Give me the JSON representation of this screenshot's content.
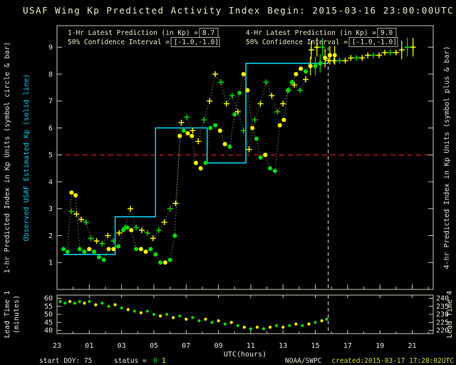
{
  "header": {
    "title": "USAF Wing Kp Predicted Activity Index",
    "begin": "Begin: 2015-03-16 23:00:00UTC"
  },
  "legend": {
    "p1_label": "1-Hr Latest Prediction (in Kp) =",
    "p1_value": "8.7",
    "ci1_label": "50% Confidence Interval =",
    "ci1_value": "[-1.0,-1.0]",
    "p4_label": "4-Hr Latest Prediction (in Kp) =",
    "p4_value": "9.0",
    "ci4_label": "50% Confidence Interval =",
    "ci4_value": "[-1.0,-1.0]"
  },
  "axes": {
    "left_1hr": "1-hr Predicted Index in Kp Units (symbol circle & bar)",
    "left_obs": "Observed USAF Estimated Kp (solid line)",
    "right_4hr": "4-hr Predicted Index in Kp Units (symbol plus & bar)",
    "lead_left": "Lead Time 1",
    "lead_units": "(minutes)",
    "lead_right": "Lead Time 4",
    "x_label": "UTC(hours)"
  },
  "footer": {
    "start_doy": "start DOY: 75",
    "status_label": "status =",
    "status_0": "0",
    "status_1": "1",
    "agency": "NOAA/SWPC",
    "created": "created:2015-03-17 17:28:02UTC"
  },
  "chart_data": {
    "type": "scatter",
    "title": "USAF Wing Kp Predicted Activity Index",
    "begin_utc": "2015-03-16 23:00:00UTC",
    "x_axis": {
      "label": "UTC(hours)",
      "ticks": [
        "23",
        "01",
        "03",
        "05",
        "07",
        "09",
        "11",
        "13",
        "15",
        "17",
        "19",
        "21"
      ],
      "tick_interval_hours": 2,
      "hours_from_begin_range": [
        0,
        23.3
      ]
    },
    "main_panel": {
      "ylim": [
        0,
        9.8
      ],
      "yticks": [
        1,
        2,
        3,
        4,
        5,
        6,
        7,
        8,
        9
      ],
      "threshold_kp": 5,
      "now_hour": 16.8,
      "point_format": "[hours_from_begin, kp, color g=green y=yellow, has_error_bar]",
      "observed_kp_steps": [
        {
          "t0": 0.4,
          "t1": 3.6,
          "kp": 1.3
        },
        {
          "t0": 3.6,
          "t1": 6.1,
          "kp": 2.7
        },
        {
          "t0": 6.1,
          "t1": 9.3,
          "kp": 6.0
        },
        {
          "t0": 9.3,
          "t1": 11.7,
          "kp": 4.7
        },
        {
          "t0": 11.7,
          "t1": 16.8,
          "kp": 8.4
        }
      ],
      "series": [
        {
          "name": "1-hr Predicted Kp",
          "symbol": "circle",
          "latest": 8.7,
          "confidence_interval": "[-1.0,-1.0]",
          "points": [
            [
              0.4,
              1.5,
              "g"
            ],
            [
              0.65,
              1.4,
              "g"
            ],
            [
              0.9,
              3.6,
              "y"
            ],
            [
              1.15,
              3.5,
              "y"
            ],
            [
              1.4,
              1.5,
              "g"
            ],
            [
              1.7,
              1.4,
              "g"
            ],
            [
              2.0,
              1.5,
              "y"
            ],
            [
              2.3,
              1.4,
              "g"
            ],
            [
              2.6,
              1.2,
              "g"
            ],
            [
              2.9,
              1.1,
              "g"
            ],
            [
              3.2,
              1.5,
              "y"
            ],
            [
              3.5,
              1.5,
              "y"
            ],
            [
              3.8,
              1.6,
              "g"
            ],
            [
              4.1,
              2.2,
              "g"
            ],
            [
              4.35,
              2.3,
              "g"
            ],
            [
              4.6,
              2.2,
              "y"
            ],
            [
              4.9,
              1.5,
              "g"
            ],
            [
              5.2,
              1.5,
              "y"
            ],
            [
              5.5,
              1.4,
              "y"
            ],
            [
              5.8,
              1.5,
              "g"
            ],
            [
              6.1,
              1.3,
              "g"
            ],
            [
              6.4,
              1.0,
              "g"
            ],
            [
              6.7,
              1.0,
              "y"
            ],
            [
              7.0,
              1.1,
              "g"
            ],
            [
              7.3,
              2.0,
              "g"
            ],
            [
              7.6,
              5.7,
              "y"
            ],
            [
              7.85,
              5.9,
              "g"
            ],
            [
              8.1,
              5.8,
              "y"
            ],
            [
              8.35,
              5.7,
              "y"
            ],
            [
              8.6,
              4.7,
              "y"
            ],
            [
              8.9,
              4.5,
              "y"
            ],
            [
              9.2,
              4.7,
              "g"
            ],
            [
              9.5,
              6.0,
              "g"
            ],
            [
              9.8,
              6.1,
              "g"
            ],
            [
              10.1,
              5.9,
              "y"
            ],
            [
              10.4,
              5.4,
              "y"
            ],
            [
              10.7,
              5.3,
              "g"
            ],
            [
              11.0,
              6.5,
              "g"
            ],
            [
              11.3,
              7.3,
              "g"
            ],
            [
              11.55,
              8.0,
              "y"
            ],
            [
              11.8,
              7.4,
              "y"
            ],
            [
              12.1,
              6.0,
              "y"
            ],
            [
              12.35,
              5.6,
              "g"
            ],
            [
              12.6,
              4.9,
              "g"
            ],
            [
              12.9,
              5.0,
              "y"
            ],
            [
              13.2,
              4.5,
              "g"
            ],
            [
              13.5,
              4.4,
              "g"
            ],
            [
              13.8,
              6.1,
              "y"
            ],
            [
              14.05,
              6.3,
              "y"
            ],
            [
              14.3,
              7.4,
              "g"
            ],
            [
              14.55,
              7.7,
              "g"
            ],
            [
              14.8,
              8.0,
              "y"
            ],
            [
              15.1,
              8.2,
              "y"
            ],
            [
              15.4,
              8.1,
              "g"
            ],
            [
              15.7,
              8.3,
              "y",
              1
            ],
            [
              16.0,
              8.3,
              "g",
              1
            ],
            [
              16.3,
              8.4,
              "g",
              1
            ],
            [
              16.6,
              8.6,
              "y",
              1
            ],
            [
              16.9,
              8.7,
              "y",
              1
            ],
            [
              17.2,
              8.7,
              "y",
              1
            ]
          ]
        },
        {
          "name": "4-hr Predicted Kp",
          "symbol": "plus",
          "latest": 9.0,
          "confidence_interval": "[-1.0,-1.0]",
          "points": [
            [
              0.9,
              2.9,
              "g"
            ],
            [
              1.2,
              2.8,
              "y"
            ],
            [
              1.5,
              2.6,
              "y"
            ],
            [
              1.8,
              2.5,
              "g"
            ],
            [
              2.1,
              1.9,
              "g"
            ],
            [
              2.45,
              1.8,
              "y"
            ],
            [
              2.8,
              1.7,
              "g"
            ],
            [
              3.15,
              2.0,
              "y"
            ],
            [
              3.5,
              1.8,
              "g"
            ],
            [
              3.85,
              2.1,
              "y"
            ],
            [
              4.2,
              2.3,
              "g"
            ],
            [
              4.55,
              3.0,
              "y"
            ],
            [
              4.9,
              2.3,
              "g"
            ],
            [
              5.25,
              2.2,
              "y"
            ],
            [
              5.6,
              2.1,
              "g"
            ],
            [
              5.95,
              1.9,
              "y"
            ],
            [
              6.3,
              2.2,
              "g"
            ],
            [
              6.65,
              2.5,
              "y"
            ],
            [
              7.0,
              3.0,
              "g"
            ],
            [
              7.35,
              3.2,
              "y"
            ],
            [
              7.7,
              6.2,
              "y"
            ],
            [
              8.05,
              6.4,
              "g"
            ],
            [
              8.4,
              5.9,
              "y"
            ],
            [
              8.75,
              5.5,
              "y"
            ],
            [
              9.1,
              6.3,
              "g"
            ],
            [
              9.45,
              7.0,
              "y"
            ],
            [
              9.8,
              8.0,
              "y"
            ],
            [
              10.15,
              7.7,
              "g"
            ],
            [
              10.5,
              6.9,
              "y"
            ],
            [
              10.85,
              7.2,
              "g"
            ],
            [
              11.2,
              6.6,
              "y"
            ],
            [
              11.55,
              5.9,
              "g"
            ],
            [
              11.9,
              5.2,
              "y"
            ],
            [
              12.25,
              6.3,
              "g"
            ],
            [
              12.6,
              6.9,
              "y"
            ],
            [
              12.95,
              7.7,
              "g"
            ],
            [
              13.3,
              7.2,
              "y"
            ],
            [
              13.65,
              6.6,
              "g"
            ],
            [
              14.0,
              6.9,
              "y"
            ],
            [
              14.35,
              7.4,
              "g"
            ],
            [
              14.7,
              7.6,
              "y"
            ],
            [
              15.05,
              7.4,
              "g"
            ],
            [
              15.4,
              7.8,
              "y"
            ],
            [
              15.75,
              8.9,
              "y",
              1
            ],
            [
              16.1,
              9.0,
              "y",
              1
            ],
            [
              16.45,
              9.0,
              "g",
              1
            ],
            [
              16.8,
              8.5,
              "y"
            ],
            [
              17.15,
              8.5,
              "y"
            ],
            [
              17.5,
              8.5,
              "g"
            ],
            [
              17.85,
              8.5,
              "y"
            ],
            [
              18.2,
              8.6,
              "y"
            ],
            [
              18.55,
              8.6,
              "g"
            ],
            [
              18.9,
              8.6,
              "y"
            ],
            [
              19.25,
              8.7,
              "y"
            ],
            [
              19.6,
              8.7,
              "g"
            ],
            [
              19.95,
              8.7,
              "y"
            ],
            [
              20.3,
              8.8,
              "y"
            ],
            [
              20.65,
              8.8,
              "g"
            ],
            [
              21.0,
              8.8,
              "y"
            ],
            [
              21.35,
              8.9,
              "y",
              1
            ],
            [
              21.7,
              9.0,
              "g",
              1
            ],
            [
              22.05,
              9.0,
              "y",
              1
            ]
          ]
        }
      ]
    },
    "lead_panel": {
      "left_ylim": [
        38,
        62
      ],
      "left_ticks": [
        40,
        45,
        50,
        55,
        60
      ],
      "right_ticks": [
        220,
        225,
        230,
        235,
        240
      ],
      "point_format": "[hours_from_begin, lead_minutes, color g=green y=yellow]",
      "points": [
        [
          0.2,
          58,
          "g"
        ],
        [
          0.5,
          57,
          "g"
        ],
        [
          0.8,
          58,
          "y"
        ],
        [
          1.1,
          57,
          "g"
        ],
        [
          1.4,
          58,
          "g"
        ],
        [
          1.7,
          57,
          "y"
        ],
        [
          2.0,
          58,
          "g"
        ],
        [
          2.4,
          56,
          "y"
        ],
        [
          2.8,
          57,
          "g"
        ],
        [
          3.2,
          55,
          "g"
        ],
        [
          3.6,
          56,
          "y"
        ],
        [
          4.0,
          54,
          "g"
        ],
        [
          4.4,
          53,
          "y"
        ],
        [
          4.8,
          52,
          "g"
        ],
        [
          5.2,
          51,
          "y"
        ],
        [
          5.6,
          52,
          "g"
        ],
        [
          6.0,
          50,
          "g"
        ],
        [
          6.4,
          49,
          "y"
        ],
        [
          6.8,
          50,
          "g"
        ],
        [
          7.2,
          48,
          "y"
        ],
        [
          7.6,
          49,
          "g"
        ],
        [
          8.0,
          47,
          "y"
        ],
        [
          8.4,
          48,
          "g"
        ],
        [
          8.8,
          46,
          "g"
        ],
        [
          9.2,
          47,
          "y"
        ],
        [
          9.6,
          45,
          "g"
        ],
        [
          10.0,
          46,
          "y"
        ],
        [
          10.4,
          44,
          "g"
        ],
        [
          10.8,
          45,
          "y"
        ],
        [
          11.2,
          43,
          "g"
        ],
        [
          11.6,
          42,
          "y"
        ],
        [
          12.0,
          41,
          "g"
        ],
        [
          12.4,
          42,
          "y"
        ],
        [
          12.8,
          41,
          "g"
        ],
        [
          13.2,
          42,
          "y"
        ],
        [
          13.6,
          43,
          "g"
        ],
        [
          14.0,
          42,
          "y"
        ],
        [
          14.4,
          43,
          "g"
        ],
        [
          14.8,
          44,
          "y"
        ],
        [
          15.2,
          43,
          "g"
        ],
        [
          15.6,
          44,
          "y"
        ],
        [
          16.0,
          45,
          "g"
        ],
        [
          16.4,
          46,
          "y"
        ],
        [
          16.7,
          47,
          "g"
        ]
      ]
    },
    "colors": {
      "background": "#000000",
      "axis": "#c8c8b8",
      "text": "#e4e4d4",
      "title_text": "#e8e8c0",
      "observed_line": "#00ccee",
      "green": "#00dd00",
      "yellow": "#ffff00",
      "threshold_red": "#ff2222",
      "connector": "#a8a855",
      "created_yellow": "#d8d838"
    }
  }
}
